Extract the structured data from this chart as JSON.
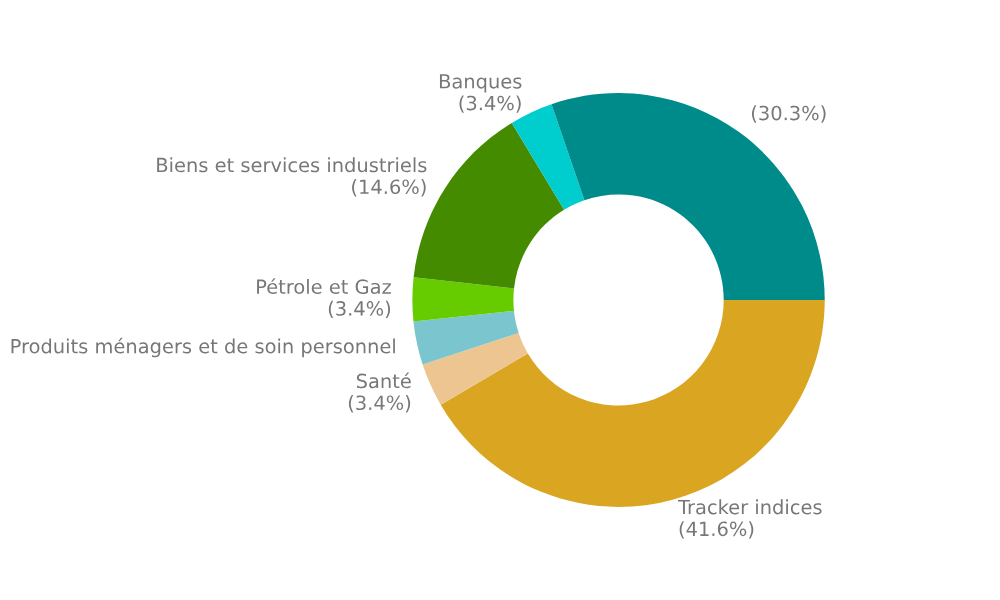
{
  "chart_data": {
    "type": "donut",
    "categories": [
      "Tracker indices",
      "Santé",
      "Produits ménagers et de soin personnel",
      "Pétrole et Gaz",
      "Biens et services industriels",
      "Banques",
      null
    ],
    "values": [
      41.6,
      3.4,
      3.4,
      3.4,
      14.6,
      3.4,
      30.3
    ],
    "value_labels": [
      "(41.6%)",
      "(3.4%)",
      null,
      "(3.4%)",
      "(14.6%)",
      "(3.4%)",
      "(30.3%)"
    ],
    "colors": [
      "#daa520",
      "#edc591",
      "#7ac5ce",
      "#66cc00",
      "#458b00",
      "#00cdcd",
      "#008b8b"
    ],
    "legend": false
  }
}
